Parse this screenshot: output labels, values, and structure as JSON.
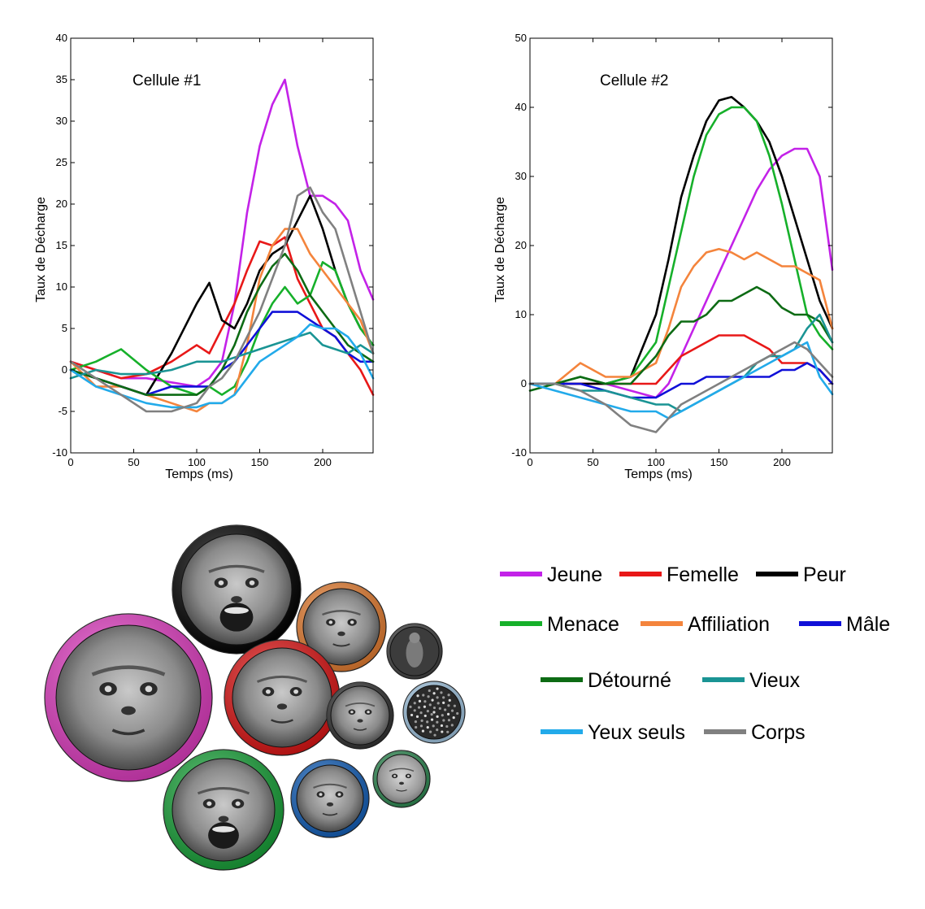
{
  "legend": {
    "items": [
      {
        "label": "Jeune",
        "color": "#c322e8"
      },
      {
        "label": "Femelle",
        "color": "#e81818"
      },
      {
        "label": "Peur",
        "color": "#000000"
      },
      {
        "label": "Menace",
        "color": "#16b02a"
      },
      {
        "label": "Affiliation",
        "color": "#f4843c"
      },
      {
        "label": "Mâle",
        "color": "#1010d8"
      },
      {
        "label": "Détourné",
        "color": "#0d6b14"
      },
      {
        "label": "Vieux",
        "color": "#1a9494"
      },
      {
        "label": "Yeux seuls",
        "color": "#22aaea"
      },
      {
        "label": "Corps",
        "color": "#808080"
      }
    ]
  },
  "stimuli": [
    {
      "name": "Jeune",
      "ring": "#e83ec8",
      "icon": "young-monkey-face-icon"
    },
    {
      "name": "Peur",
      "ring": "#000000",
      "icon": "fear-monkey-face-icon"
    },
    {
      "name": "Affiliation",
      "ring": "#ef8232",
      "icon": "affiliation-monkey-face-icon"
    },
    {
      "name": "Femelle",
      "ring": "#e61414",
      "icon": "female-monkey-face-icon"
    },
    {
      "name": "Menace",
      "ring": "#18a83a",
      "icon": "threat-monkey-face-icon"
    },
    {
      "name": "Mâle",
      "ring": "#1262c0",
      "icon": "male-monkey-face-icon"
    },
    {
      "name": "Détourné",
      "ring": "#333333",
      "icon": "averted-monkey-face-icon"
    },
    {
      "name": "Corps",
      "ring": "#444444",
      "icon": "body-icon"
    },
    {
      "name": "Yeux seuls",
      "ring": "#a7cdea",
      "icon": "eyes-only-icon"
    },
    {
      "name": "Vieux",
      "ring": "#2f8f55",
      "icon": "old-monkey-face-icon"
    }
  ],
  "chart_data": [
    {
      "type": "line",
      "title": "Cellule #1",
      "xlabel": "Temps (ms)",
      "ylabel": "Taux de Décharge",
      "xlim": [
        0,
        240
      ],
      "ylim": [
        -10,
        40
      ],
      "xticks": [
        0,
        50,
        100,
        150,
        200
      ],
      "yticks": [
        -10,
        -5,
        0,
        5,
        10,
        15,
        20,
        25,
        30,
        35,
        40
      ],
      "grid": false,
      "x": [
        0,
        20,
        40,
        60,
        80,
        100,
        110,
        120,
        130,
        140,
        150,
        160,
        170,
        180,
        190,
        200,
        210,
        220,
        230,
        240
      ],
      "series": [
        {
          "name": "Jeune",
          "color": "#c322e8",
          "values": [
            1,
            0,
            -1,
            -1,
            -1.5,
            -2,
            -1,
            1,
            8,
            19,
            27,
            32,
            35,
            27,
            21,
            21,
            20,
            18,
            12,
            8.5
          ]
        },
        {
          "name": "Femelle",
          "color": "#e81818",
          "values": [
            1,
            0,
            -1,
            -0.5,
            1,
            3,
            2,
            5,
            8,
            12,
            15.5,
            15,
            16,
            11,
            8,
            5,
            4,
            2,
            0,
            -3
          ]
        },
        {
          "name": "Peur",
          "color": "#000000",
          "values": [
            0,
            -1,
            -2,
            -3,
            2,
            8,
            10.5,
            6,
            5,
            8,
            12,
            14,
            15,
            18,
            21,
            17,
            12,
            8,
            5,
            3
          ]
        },
        {
          "name": "Menace",
          "color": "#16b02a",
          "values": [
            0,
            1,
            2.5,
            0,
            -2,
            -3,
            -2,
            -3,
            -2,
            1,
            5,
            8,
            10,
            8,
            9,
            13,
            12,
            8,
            5,
            3
          ]
        },
        {
          "name": "Affiliation",
          "color": "#f4843c",
          "values": [
            1,
            -2,
            -2,
            -3,
            -4,
            -5,
            -4,
            -4,
            -3,
            3,
            11,
            15,
            17,
            17,
            14,
            12,
            10,
            8,
            6,
            2
          ]
        },
        {
          "name": "Mâle",
          "color": "#1010d8",
          "values": [
            0,
            -1,
            -2,
            -3,
            -2,
            -2,
            -2,
            0,
            1,
            3,
            5,
            7,
            7,
            7,
            6,
            5,
            4,
            2,
            1,
            1
          ]
        },
        {
          "name": "Détourné",
          "color": "#0d6b14",
          "values": [
            0,
            -1,
            -2,
            -3,
            -3,
            -3,
            -2,
            0,
            3,
            7,
            10,
            12.5,
            14,
            12,
            9,
            7,
            5,
            3,
            2,
            1
          ]
        },
        {
          "name": "Vieux",
          "color": "#1a9494",
          "values": [
            -1,
            0,
            -0.5,
            -0.5,
            0,
            1,
            1,
            1,
            1.5,
            2,
            2.5,
            3,
            3.5,
            4,
            4.5,
            3,
            2.5,
            2,
            3,
            2
          ]
        },
        {
          "name": "Yeux seuls",
          "color": "#22aaea",
          "values": [
            0,
            -2,
            -3,
            -4,
            -4.5,
            -4.5,
            -4,
            -4,
            -3,
            -1,
            1,
            2,
            3,
            4,
            5.5,
            5,
            5,
            4,
            2,
            -1
          ]
        },
        {
          "name": "Corps",
          "color": "#808080",
          "values": [
            1,
            -1,
            -3,
            -5,
            -5,
            -4,
            -2,
            -1,
            1,
            4,
            7,
            11,
            15,
            21,
            22,
            19,
            17,
            12,
            7,
            2
          ]
        }
      ]
    },
    {
      "type": "line",
      "title": "Cellule #2",
      "xlabel": "Temps (ms)",
      "ylabel": "Taux de Décharge",
      "xlim": [
        0,
        240
      ],
      "ylim": [
        -10,
        50
      ],
      "xticks": [
        0,
        50,
        100,
        150,
        200
      ],
      "yticks": [
        -10,
        0,
        10,
        20,
        30,
        40,
        50
      ],
      "grid": false,
      "x": [
        0,
        20,
        40,
        60,
        80,
        100,
        110,
        120,
        130,
        140,
        150,
        160,
        170,
        180,
        190,
        200,
        210,
        220,
        230,
        240
      ],
      "series": [
        {
          "name": "Jeune",
          "color": "#c322e8",
          "values": [
            0,
            0,
            0,
            0,
            -1,
            -2,
            0,
            4,
            8,
            12,
            16,
            20,
            24,
            28,
            31,
            33,
            34,
            34,
            30,
            16.5
          ]
        },
        {
          "name": "Femelle",
          "color": "#e81818",
          "values": [
            0,
            0,
            0,
            0,
            0,
            0,
            2,
            4,
            5,
            6,
            7,
            7,
            7,
            6,
            5,
            3,
            3,
            3,
            2,
            0
          ]
        },
        {
          "name": "Peur",
          "color": "#000000",
          "values": [
            0,
            0,
            0,
            0,
            1,
            10,
            18,
            27,
            33,
            38,
            41,
            41.5,
            40,
            38,
            35,
            30,
            24,
            18,
            12,
            8
          ]
        },
        {
          "name": "Menace",
          "color": "#16b02a",
          "values": [
            0,
            0,
            1,
            0,
            1,
            6,
            14,
            22,
            30,
            36,
            39,
            40,
            40,
            38,
            33,
            26,
            18,
            10,
            7,
            5
          ]
        },
        {
          "name": "Affiliation",
          "color": "#f4843c",
          "values": [
            0,
            0,
            3,
            1,
            1,
            3,
            8,
            14,
            17,
            19,
            19.5,
            19,
            18,
            19,
            18,
            17,
            17,
            16,
            15,
            8
          ]
        },
        {
          "name": "Mâle",
          "color": "#1010d8",
          "values": [
            0,
            0,
            0,
            -1,
            -2,
            -2,
            -1,
            0,
            0,
            1,
            1,
            1,
            1,
            1,
            1,
            2,
            2,
            3,
            2,
            0
          ]
        },
        {
          "name": "Détourné",
          "color": "#0d6b14",
          "values": [
            -1,
            0,
            1,
            0,
            0,
            4,
            7,
            9,
            9,
            10,
            12,
            12,
            13,
            14,
            13,
            11,
            10,
            10,
            9,
            6
          ]
        },
        {
          "name": "Vieux",
          "color": "#1a9494",
          "values": [
            0,
            0,
            -1,
            -1,
            -2,
            -3,
            -3,
            -4,
            -3,
            -2,
            -1,
            0,
            1,
            3,
            4,
            4,
            5,
            8,
            10,
            6
          ]
        },
        {
          "name": "Yeux seuls",
          "color": "#22aaea",
          "values": [
            0,
            -1,
            -2,
            -3,
            -4,
            -4,
            -5,
            -4,
            -3,
            -2,
            -1,
            0,
            1,
            2,
            3,
            4,
            5,
            6,
            1,
            -1.5
          ]
        },
        {
          "name": "Corps",
          "color": "#808080",
          "values": [
            0,
            0,
            -1,
            -3,
            -6,
            -7,
            -5,
            -3,
            -2,
            -1,
            0,
            1,
            2,
            3,
            4,
            5,
            6,
            5,
            3,
            1
          ]
        }
      ]
    }
  ]
}
